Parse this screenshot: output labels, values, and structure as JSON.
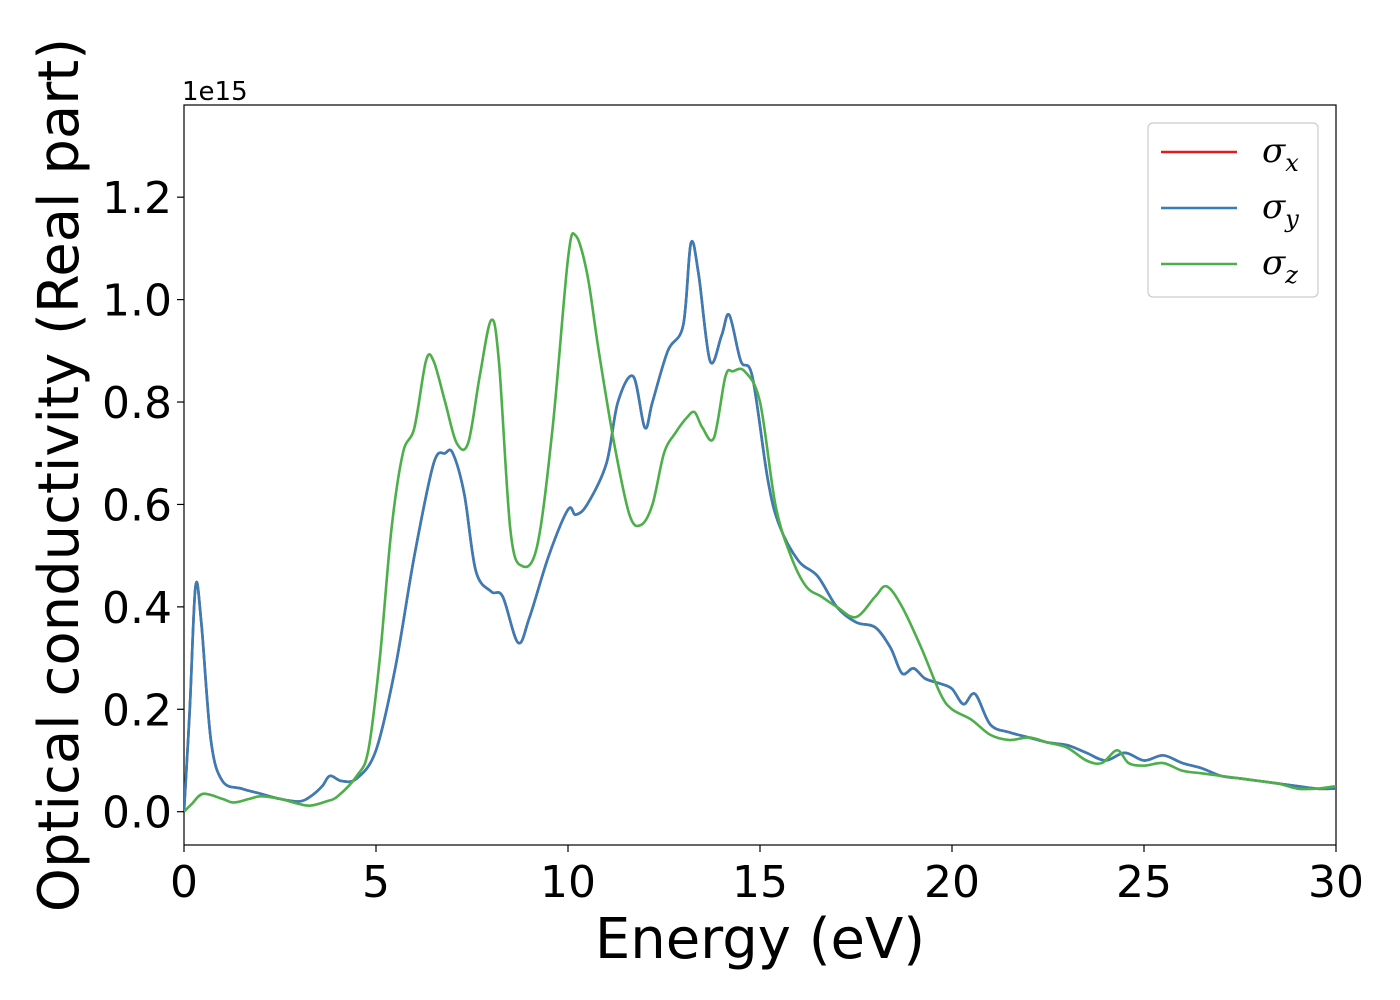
{
  "chart_data": {
    "type": "line",
    "xlabel": "Energy (eV)",
    "ylabel": "Optical conductivity (Real part)",
    "y_offset_text": "1e15",
    "xlim": [
      0,
      30
    ],
    "ylim": [
      -0.065,
      1.38
    ],
    "x_ticks": [
      0,
      5,
      10,
      15,
      20,
      25,
      30
    ],
    "x_tick_labels": [
      "0",
      "5",
      "10",
      "15",
      "20",
      "25",
      "30"
    ],
    "y_ticks": [
      0.0,
      0.2,
      0.4,
      0.6,
      0.8,
      1.0,
      1.2
    ],
    "y_tick_labels": [
      "0.0",
      "0.2",
      "0.4",
      "0.6",
      "0.8",
      "1.0",
      "1.2"
    ],
    "grid": false,
    "legend_position": "top-right",
    "series": [
      {
        "name": "σx",
        "symbol": "σ",
        "subscript": "x",
        "color": "#e41a1c",
        "points": [
          [
            0,
            0
          ],
          [
            0.15,
            0.2
          ],
          [
            0.3,
            0.44
          ],
          [
            0.45,
            0.37
          ],
          [
            0.7,
            0.14
          ],
          [
            1.0,
            0.06
          ],
          [
            1.5,
            0.045
          ],
          [
            2.0,
            0.035
          ],
          [
            2.5,
            0.025
          ],
          [
            3.0,
            0.02
          ],
          [
            3.3,
            0.03
          ],
          [
            3.6,
            0.05
          ],
          [
            3.8,
            0.07
          ],
          [
            4.1,
            0.06
          ],
          [
            4.5,
            0.065
          ],
          [
            5.0,
            0.12
          ],
          [
            5.5,
            0.28
          ],
          [
            6.0,
            0.5
          ],
          [
            6.5,
            0.68
          ],
          [
            6.8,
            0.7
          ],
          [
            7.0,
            0.7
          ],
          [
            7.3,
            0.62
          ],
          [
            7.6,
            0.47
          ],
          [
            8.0,
            0.43
          ],
          [
            8.3,
            0.42
          ],
          [
            8.7,
            0.33
          ],
          [
            9.0,
            0.38
          ],
          [
            9.5,
            0.5
          ],
          [
            10.0,
            0.59
          ],
          [
            10.2,
            0.58
          ],
          [
            10.5,
            0.6
          ],
          [
            11.0,
            0.68
          ],
          [
            11.3,
            0.8
          ],
          [
            11.7,
            0.85
          ],
          [
            12.0,
            0.75
          ],
          [
            12.2,
            0.8
          ],
          [
            12.6,
            0.9
          ],
          [
            13.0,
            0.95
          ],
          [
            13.2,
            1.11
          ],
          [
            13.4,
            1.05
          ],
          [
            13.7,
            0.88
          ],
          [
            14.0,
            0.93
          ],
          [
            14.2,
            0.97
          ],
          [
            14.5,
            0.88
          ],
          [
            14.8,
            0.85
          ],
          [
            15.2,
            0.65
          ],
          [
            15.5,
            0.56
          ],
          [
            16.0,
            0.49
          ],
          [
            16.5,
            0.46
          ],
          [
            17.0,
            0.4
          ],
          [
            17.5,
            0.37
          ],
          [
            18.0,
            0.36
          ],
          [
            18.4,
            0.32
          ],
          [
            18.7,
            0.27
          ],
          [
            19.0,
            0.28
          ],
          [
            19.3,
            0.26
          ],
          [
            19.7,
            0.25
          ],
          [
            20.0,
            0.24
          ],
          [
            20.3,
            0.21
          ],
          [
            20.6,
            0.23
          ],
          [
            21.0,
            0.17
          ],
          [
            21.5,
            0.155
          ],
          [
            22.0,
            0.145
          ],
          [
            22.5,
            0.135
          ],
          [
            23.0,
            0.13
          ],
          [
            23.5,
            0.115
          ],
          [
            24.0,
            0.1
          ],
          [
            24.5,
            0.115
          ],
          [
            25.0,
            0.1
          ],
          [
            25.5,
            0.11
          ],
          [
            26.0,
            0.095
          ],
          [
            26.5,
            0.085
          ],
          [
            27.0,
            0.07
          ],
          [
            27.5,
            0.065
          ],
          [
            28.0,
            0.06
          ],
          [
            28.5,
            0.055
          ],
          [
            29.0,
            0.05
          ],
          [
            29.5,
            0.045
          ],
          [
            30.0,
            0.045
          ]
        ]
      },
      {
        "name": "σy",
        "symbol": "σ",
        "subscript": "y",
        "color": "#377eb8",
        "points": [
          [
            0,
            0
          ],
          [
            0.15,
            0.2
          ],
          [
            0.3,
            0.44
          ],
          [
            0.45,
            0.37
          ],
          [
            0.7,
            0.14
          ],
          [
            1.0,
            0.06
          ],
          [
            1.5,
            0.045
          ],
          [
            2.0,
            0.035
          ],
          [
            2.5,
            0.025
          ],
          [
            3.0,
            0.02
          ],
          [
            3.3,
            0.03
          ],
          [
            3.6,
            0.05
          ],
          [
            3.8,
            0.07
          ],
          [
            4.1,
            0.06
          ],
          [
            4.5,
            0.065
          ],
          [
            5.0,
            0.12
          ],
          [
            5.5,
            0.28
          ],
          [
            6.0,
            0.5
          ],
          [
            6.5,
            0.68
          ],
          [
            6.8,
            0.7
          ],
          [
            7.0,
            0.7
          ],
          [
            7.3,
            0.62
          ],
          [
            7.6,
            0.47
          ],
          [
            8.0,
            0.43
          ],
          [
            8.3,
            0.42
          ],
          [
            8.7,
            0.33
          ],
          [
            9.0,
            0.38
          ],
          [
            9.5,
            0.5
          ],
          [
            10.0,
            0.59
          ],
          [
            10.2,
            0.58
          ],
          [
            10.5,
            0.6
          ],
          [
            11.0,
            0.68
          ],
          [
            11.3,
            0.8
          ],
          [
            11.7,
            0.85
          ],
          [
            12.0,
            0.75
          ],
          [
            12.2,
            0.8
          ],
          [
            12.6,
            0.9
          ],
          [
            13.0,
            0.95
          ],
          [
            13.2,
            1.11
          ],
          [
            13.4,
            1.05
          ],
          [
            13.7,
            0.88
          ],
          [
            14.0,
            0.93
          ],
          [
            14.2,
            0.97
          ],
          [
            14.5,
            0.88
          ],
          [
            14.8,
            0.85
          ],
          [
            15.2,
            0.65
          ],
          [
            15.5,
            0.56
          ],
          [
            16.0,
            0.49
          ],
          [
            16.5,
            0.46
          ],
          [
            17.0,
            0.4
          ],
          [
            17.5,
            0.37
          ],
          [
            18.0,
            0.36
          ],
          [
            18.4,
            0.32
          ],
          [
            18.7,
            0.27
          ],
          [
            19.0,
            0.28
          ],
          [
            19.3,
            0.26
          ],
          [
            19.7,
            0.25
          ],
          [
            20.0,
            0.24
          ],
          [
            20.3,
            0.21
          ],
          [
            20.6,
            0.23
          ],
          [
            21.0,
            0.17
          ],
          [
            21.5,
            0.155
          ],
          [
            22.0,
            0.145
          ],
          [
            22.5,
            0.135
          ],
          [
            23.0,
            0.13
          ],
          [
            23.5,
            0.115
          ],
          [
            24.0,
            0.1
          ],
          [
            24.5,
            0.115
          ],
          [
            25.0,
            0.1
          ],
          [
            25.5,
            0.11
          ],
          [
            26.0,
            0.095
          ],
          [
            26.5,
            0.085
          ],
          [
            27.0,
            0.07
          ],
          [
            27.5,
            0.065
          ],
          [
            28.0,
            0.06
          ],
          [
            28.5,
            0.055
          ],
          [
            29.0,
            0.05
          ],
          [
            29.5,
            0.045
          ],
          [
            30.0,
            0.045
          ]
        ]
      },
      {
        "name": "σz",
        "symbol": "σ",
        "subscript": "z",
        "color": "#4daf4a",
        "points": [
          [
            0,
            0
          ],
          [
            0.2,
            0.015
          ],
          [
            0.5,
            0.035
          ],
          [
            1.0,
            0.025
          ],
          [
            1.3,
            0.018
          ],
          [
            1.7,
            0.025
          ],
          [
            2.0,
            0.03
          ],
          [
            2.5,
            0.025
          ],
          [
            3.0,
            0.015
          ],
          [
            3.3,
            0.012
          ],
          [
            3.7,
            0.02
          ],
          [
            4.0,
            0.03
          ],
          [
            4.5,
            0.07
          ],
          [
            4.8,
            0.12
          ],
          [
            5.1,
            0.3
          ],
          [
            5.4,
            0.55
          ],
          [
            5.7,
            0.7
          ],
          [
            6.0,
            0.75
          ],
          [
            6.3,
            0.88
          ],
          [
            6.5,
            0.88
          ],
          [
            6.8,
            0.8
          ],
          [
            7.1,
            0.72
          ],
          [
            7.4,
            0.72
          ],
          [
            7.7,
            0.85
          ],
          [
            8.0,
            0.96
          ],
          [
            8.2,
            0.88
          ],
          [
            8.5,
            0.55
          ],
          [
            8.8,
            0.48
          ],
          [
            9.2,
            0.52
          ],
          [
            9.6,
            0.75
          ],
          [
            10.0,
            1.08
          ],
          [
            10.2,
            1.125
          ],
          [
            10.5,
            1.05
          ],
          [
            10.8,
            0.9
          ],
          [
            11.2,
            0.72
          ],
          [
            11.6,
            0.58
          ],
          [
            11.9,
            0.56
          ],
          [
            12.2,
            0.6
          ],
          [
            12.5,
            0.7
          ],
          [
            12.8,
            0.74
          ],
          [
            13.1,
            0.77
          ],
          [
            13.3,
            0.78
          ],
          [
            13.5,
            0.75
          ],
          [
            13.8,
            0.73
          ],
          [
            14.1,
            0.85
          ],
          [
            14.3,
            0.86
          ],
          [
            14.6,
            0.86
          ],
          [
            15.0,
            0.8
          ],
          [
            15.4,
            0.6
          ],
          [
            15.8,
            0.5
          ],
          [
            16.2,
            0.44
          ],
          [
            16.6,
            0.42
          ],
          [
            17.0,
            0.4
          ],
          [
            17.5,
            0.38
          ],
          [
            18.0,
            0.42
          ],
          [
            18.3,
            0.44
          ],
          [
            18.7,
            0.4
          ],
          [
            19.2,
            0.32
          ],
          [
            19.7,
            0.23
          ],
          [
            20.0,
            0.2
          ],
          [
            20.5,
            0.18
          ],
          [
            21.0,
            0.15
          ],
          [
            21.5,
            0.14
          ],
          [
            22.0,
            0.145
          ],
          [
            22.5,
            0.135
          ],
          [
            23.0,
            0.125
          ],
          [
            23.5,
            0.1
          ],
          [
            23.9,
            0.095
          ],
          [
            24.3,
            0.12
          ],
          [
            24.6,
            0.095
          ],
          [
            25.0,
            0.09
          ],
          [
            25.5,
            0.095
          ],
          [
            26.0,
            0.08
          ],
          [
            26.5,
            0.075
          ],
          [
            27.0,
            0.07
          ],
          [
            27.5,
            0.065
          ],
          [
            28.0,
            0.06
          ],
          [
            28.5,
            0.055
          ],
          [
            29.0,
            0.045
          ],
          [
            29.5,
            0.045
          ],
          [
            30.0,
            0.05
          ]
        ]
      }
    ]
  }
}
